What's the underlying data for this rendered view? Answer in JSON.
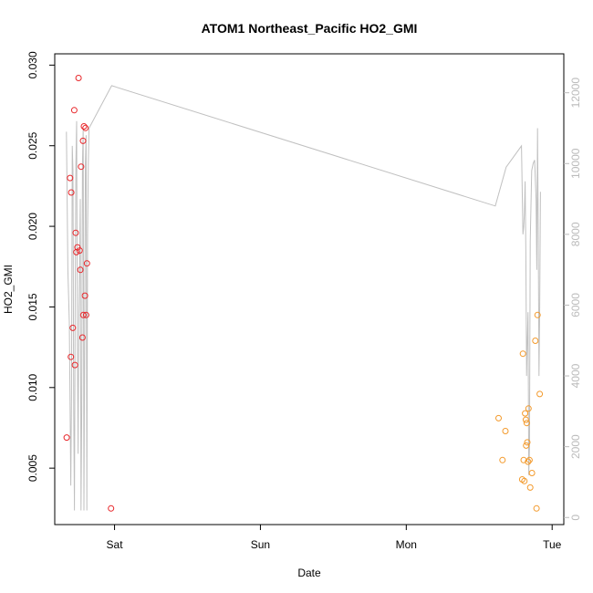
{
  "chart_data": {
    "type": "scatter",
    "title": "ATOM1 Northeast_Pacific HO2_GMI",
    "xlabel": "Date",
    "ylabel": "HO2_GMI",
    "x_unit": "days",
    "xlim": [
      -0.41,
      3.08
    ],
    "ylim": [
      0.0015,
      0.0307
    ],
    "y2lim": [
      -200,
      13100
    ],
    "x_ticks": [
      {
        "value": 0,
        "label": "Sat"
      },
      {
        "value": 1,
        "label": "Sun"
      },
      {
        "value": 2,
        "label": "Mon"
      },
      {
        "value": 3,
        "label": "Tue"
      }
    ],
    "y_ticks": [
      {
        "value": 0.005,
        "label": "0.005"
      },
      {
        "value": 0.01,
        "label": "0.010"
      },
      {
        "value": 0.015,
        "label": "0.015"
      },
      {
        "value": 0.02,
        "label": "0.020"
      },
      {
        "value": 0.025,
        "label": "0.025"
      },
      {
        "value": 0.03,
        "label": "0.030"
      }
    ],
    "y2_ticks": [
      {
        "value": 0,
        "label": "0"
      },
      {
        "value": 2000,
        "label": "2000"
      },
      {
        "value": 4000,
        "label": "4000"
      },
      {
        "value": 6000,
        "label": "6000"
      },
      {
        "value": 8000,
        "label": "8000"
      },
      {
        "value": 10000,
        "label": "10000"
      },
      {
        "value": 12000,
        "label": "12000"
      }
    ],
    "colors": {
      "series_red": "#e8262a",
      "series_orange": "#f39a2c",
      "altitude_line": "#c0c0c0",
      "right_axis": "#bbbbbb",
      "axis": "#000000"
    },
    "series": [
      {
        "color": "red",
        "points": [
          [
            -0.328,
            0.0069
          ],
          [
            -0.305,
            0.023
          ],
          [
            -0.299,
            0.0119
          ],
          [
            -0.297,
            0.0221
          ],
          [
            -0.286,
            0.0137
          ],
          [
            -0.276,
            0.0272
          ],
          [
            -0.272,
            0.0114
          ],
          [
            -0.266,
            0.0196
          ],
          [
            -0.262,
            0.0184
          ],
          [
            -0.254,
            0.0187
          ],
          [
            -0.247,
            0.0292
          ],
          [
            -0.239,
            0.0185
          ],
          [
            -0.234,
            0.0173
          ],
          [
            -0.229,
            0.0237
          ],
          [
            -0.22,
            0.0131
          ],
          [
            -0.216,
            0.0253
          ],
          [
            -0.214,
            0.0145
          ],
          [
            -0.21,
            0.0262
          ],
          [
            -0.203,
            0.0157
          ],
          [
            -0.199,
            0.0261
          ],
          [
            -0.195,
            0.0145
          ],
          [
            -0.189,
            0.0177
          ],
          [
            -0.024,
            0.0025
          ]
        ]
      },
      {
        "color": "orange",
        "points": [
          [
            2.633,
            0.0081
          ],
          [
            2.66,
            0.0055
          ],
          [
            2.68,
            0.0073
          ],
          [
            2.795,
            0.0043
          ],
          [
            2.8,
            0.0121
          ],
          [
            2.805,
            0.0055
          ],
          [
            2.81,
            0.0042
          ],
          [
            2.815,
            0.0084
          ],
          [
            2.82,
            0.008
          ],
          [
            2.822,
            0.0064
          ],
          [
            2.826,
            0.0078
          ],
          [
            2.83,
            0.0066
          ],
          [
            2.835,
            0.0054
          ],
          [
            2.838,
            0.0087
          ],
          [
            2.845,
            0.0055
          ],
          [
            2.85,
            0.0038
          ],
          [
            2.862,
            0.0047
          ],
          [
            2.885,
            0.0129
          ],
          [
            2.893,
            0.0025
          ],
          [
            2.9,
            0.0145
          ],
          [
            2.915,
            0.0096
          ]
        ]
      }
    ],
    "altitude_series": {
      "axis": "right",
      "points": [
        [
          -0.33,
          10900
        ],
        [
          -0.325,
          9000
        ],
        [
          -0.32,
          7000
        ],
        [
          -0.31,
          5500
        ],
        [
          -0.3,
          900
        ],
        [
          -0.295,
          3500
        ],
        [
          -0.29,
          10500
        ],
        [
          -0.285,
          9800
        ],
        [
          -0.28,
          3000
        ],
        [
          -0.275,
          200
        ],
        [
          -0.27,
          6000
        ],
        [
          -0.265,
          10000
        ],
        [
          -0.26,
          11200
        ],
        [
          -0.255,
          5000
        ],
        [
          -0.25,
          1800
        ],
        [
          -0.245,
          5500
        ],
        [
          -0.24,
          7000
        ],
        [
          -0.235,
          9000
        ],
        [
          -0.23,
          200
        ],
        [
          -0.225,
          3000
        ],
        [
          -0.22,
          10000
        ],
        [
          -0.215,
          11000
        ],
        [
          -0.21,
          200
        ],
        [
          -0.205,
          5000
        ],
        [
          -0.2,
          10000
        ],
        [
          -0.195,
          10800
        ],
        [
          -0.19,
          200
        ],
        [
          -0.185,
          8000
        ],
        [
          -0.18,
          10000
        ],
        [
          -0.175,
          11000
        ],
        [
          -0.02,
          12200
        ],
        [
          2.61,
          8800
        ],
        [
          2.685,
          9900
        ],
        [
          2.79,
          10500
        ],
        [
          2.8,
          8000
        ],
        [
          2.805,
          8200
        ],
        [
          2.81,
          8600
        ],
        [
          2.815,
          9500
        ],
        [
          2.82,
          7500
        ],
        [
          2.825,
          4000
        ],
        [
          2.83,
          5000
        ],
        [
          2.835,
          5800
        ],
        [
          2.84,
          1200
        ],
        [
          2.845,
          2000
        ],
        [
          2.85,
          7800
        ],
        [
          2.86,
          9800
        ],
        [
          2.87,
          10000
        ],
        [
          2.88,
          10100
        ],
        [
          2.89,
          9000
        ],
        [
          2.895,
          7000
        ],
        [
          2.9,
          11000
        ],
        [
          2.905,
          8000
        ],
        [
          2.91,
          4000
        ],
        [
          2.915,
          6000
        ],
        [
          2.92,
          9200
        ]
      ]
    }
  }
}
